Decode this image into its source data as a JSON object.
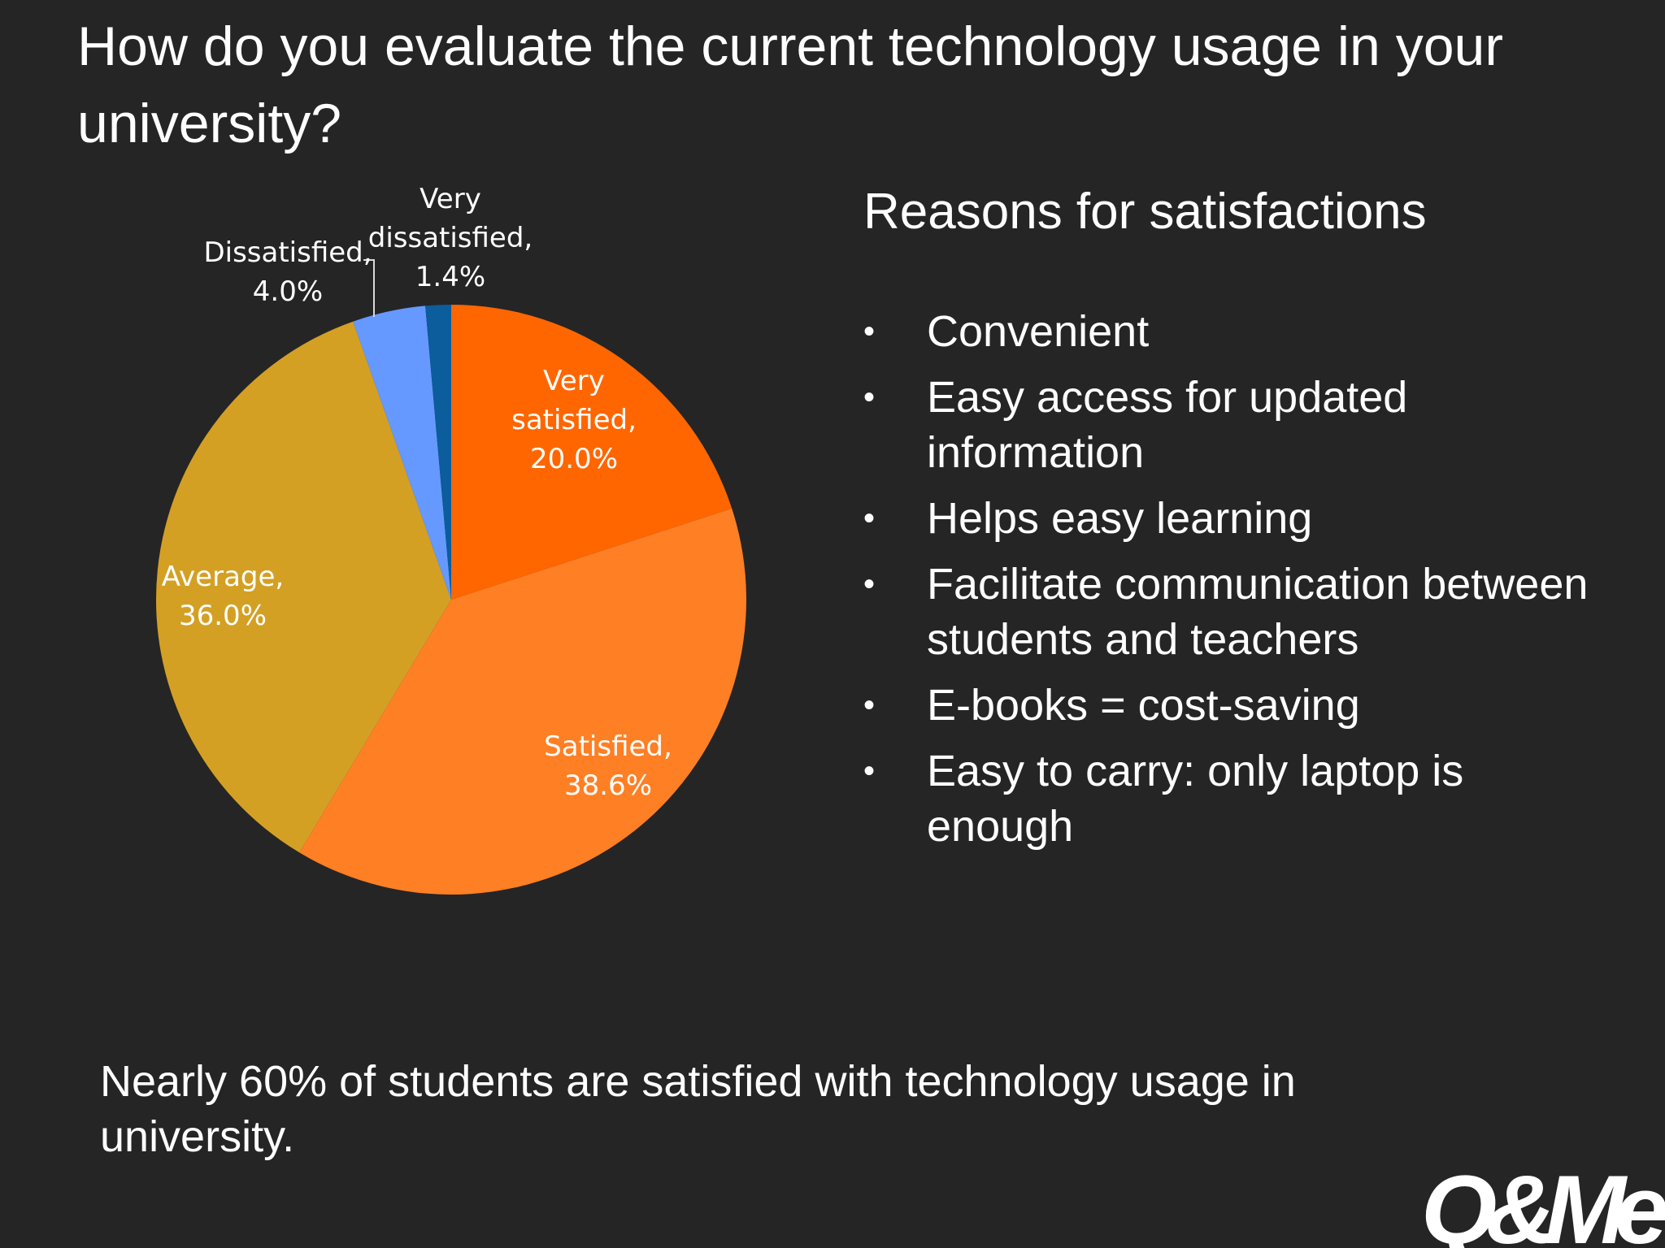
{
  "title": "How do you evaluate the current technology usage in your university?",
  "chart_data": {
    "type": "pie",
    "start_angle_deg": 0,
    "direction": "clockwise",
    "slices": [
      {
        "label": "Very satisfied,",
        "value_label": "20.0%",
        "value": 20.0,
        "color": "#ff6600"
      },
      {
        "label": "Satisfied,",
        "value_label": "38.6%",
        "value": 38.6,
        "color": "#ff7f24"
      },
      {
        "label": "Average,",
        "value_label": "36.0%",
        "value": 36.0,
        "color": "#d4a024"
      },
      {
        "label": "Dissatisfied,",
        "value_label": "4.0%",
        "value": 4.0,
        "color": "#6699ff"
      },
      {
        "label": "Very dissatisfied,",
        "value_label": "1.4%",
        "value": 1.4,
        "color": "#0b5d9c"
      }
    ]
  },
  "reasons": {
    "title": "Reasons for satisfactions",
    "bullet": "•",
    "items": [
      "Convenient",
      "Easy access for updated information",
      "Helps easy learning",
      "Facilitate communication between students and teachers",
      "E-books = cost-saving",
      "Easy to carry: only laptop is enough"
    ]
  },
  "summary": "Nearly 60% of students are satisfied with technology usage in university.",
  "logo": {
    "text": "Q&Me"
  }
}
